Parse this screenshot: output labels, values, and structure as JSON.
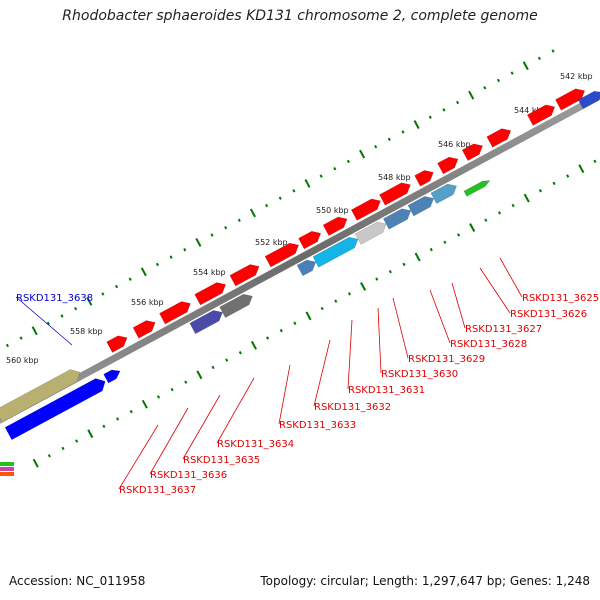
{
  "title": "Rhodobacter sphaeroides KD131 chromosome 2, complete genome",
  "footer": {
    "accession": "Accession: NC_011958",
    "info": "Topology: circular; Length: 1,297,647 bp; Genes: 1,248"
  },
  "scale_ticks": [
    "542 kbp",
    "544 kbp",
    "546 kbp",
    "548 kbp",
    "550 kbp",
    "552 kbp",
    "554 kbp",
    "556 kbp",
    "558 kbp",
    "560 kbp"
  ],
  "gene_labels": [
    {
      "name": "RSKD131_3625",
      "color": "#e00000"
    },
    {
      "name": "RSKD131_3626",
      "color": "#e00000"
    },
    {
      "name": "RSKD131_3627",
      "color": "#e00000"
    },
    {
      "name": "RSKD131_3628",
      "color": "#e00000"
    },
    {
      "name": "RSKD131_3629",
      "color": "#e00000"
    },
    {
      "name": "RSKD131_3630",
      "color": "#e00000"
    },
    {
      "name": "RSKD131_3631",
      "color": "#e00000"
    },
    {
      "name": "RSKD131_3632",
      "color": "#e00000"
    },
    {
      "name": "RSKD131_3633",
      "color": "#e00000"
    },
    {
      "name": "RSKD131_3634",
      "color": "#e00000"
    },
    {
      "name": "RSKD131_3635",
      "color": "#e00000"
    },
    {
      "name": "RSKD131_3636",
      "color": "#e00000"
    },
    {
      "name": "RSKD131_3637",
      "color": "#e00000"
    },
    {
      "name": "RSKD131_3638",
      "color": "#0000cc"
    }
  ],
  "colors": {
    "forward_cds": "#ff0000",
    "reverse_cds": "#0000ff",
    "backbone": "#808080",
    "tick": "#007700"
  }
}
